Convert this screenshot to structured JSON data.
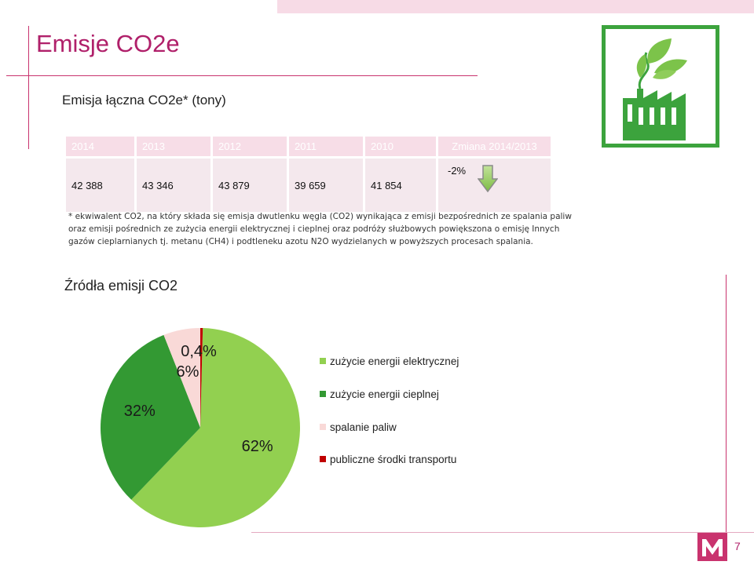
{
  "slide": {
    "title": "Emisje CO2e",
    "subtitle": "Emisja łączna CO2e* (tony)",
    "page_number": "7",
    "accent_color": "#b0206a"
  },
  "emissions_table": {
    "headers": [
      "2014",
      "2013",
      "2012",
      "2011",
      "2010",
      "Zmiana 2014/2013"
    ],
    "values": [
      "42 388",
      "43 346",
      "43 879",
      "39 659",
      "41 854"
    ],
    "change": "-2%",
    "change_icon": "down-arrow-icon"
  },
  "footnote": "* ekwiwalent CO2, na który składa się emisja dwutlenku węgla (CO2) wynikająca z emisji bezpośrednich ze spalania paliw oraz emisji pośrednich ze zużycia energii elektrycznej i cieplnej oraz podróży służbowych powiększona o emisję Innych gazów cieplarnianych tj. metanu (CH4) i podtleneku azotu N2O wydzielanych w powyższych procesach spalania.",
  "sources_title": "Źródła emisji CO2",
  "logo_icon": "factory-leaves-icon",
  "chart_data": {
    "type": "pie",
    "title": "Źródła emisji CO2",
    "slices": [
      {
        "label": "zużycie energii elektrycznej",
        "value": 62,
        "value_label": "62%",
        "color": "#92d050"
      },
      {
        "label": "zużycie energii cieplnej",
        "value": 32,
        "value_label": "32%",
        "color": "#339933"
      },
      {
        "label": "spalanie paliw",
        "value": 6,
        "value_label": "6%",
        "color": "#f9d9d7"
      },
      {
        "label": "publiczne środki transportu",
        "value": 0.4,
        "value_label": "0,4%",
        "color": "#c00000"
      }
    ],
    "legend_position": "right"
  }
}
